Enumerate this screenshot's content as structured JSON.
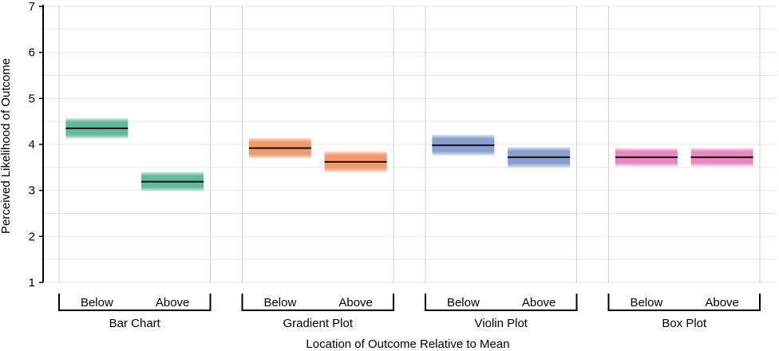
{
  "chart_data": {
    "type": "bar",
    "title": "",
    "xlabel": "Location of Outcome Relative to Mean",
    "ylabel": "Perceived Likelihood of Outcome",
    "ylim": [
      1,
      7
    ],
    "yticks": [
      "1",
      "2",
      "3",
      "4",
      "5",
      "6",
      "7"
    ],
    "grid": true,
    "groups": [
      {
        "name": "Bar Chart",
        "color": "#4fb38f",
        "categories": [
          {
            "label": "Below",
            "mean": 4.35,
            "ci_low": 4.13,
            "ci_high": 4.57
          },
          {
            "label": "Above",
            "mean": 3.19,
            "ci_low": 2.99,
            "ci_high": 3.4
          }
        ]
      },
      {
        "name": "Gradient Plot",
        "color": "#f28e5c",
        "categories": [
          {
            "label": "Below",
            "mean": 3.92,
            "ci_low": 3.7,
            "ci_high": 4.14
          },
          {
            "label": "Above",
            "mean": 3.62,
            "ci_low": 3.4,
            "ci_high": 3.85
          }
        ]
      },
      {
        "name": "Violin Plot",
        "color": "#7b93c7",
        "categories": [
          {
            "label": "Below",
            "mean": 3.98,
            "ci_low": 3.76,
            "ci_high": 4.21
          },
          {
            "label": "Above",
            "mean": 3.72,
            "ci_low": 3.5,
            "ci_high": 3.94
          }
        ]
      },
      {
        "name": "Box Plot",
        "color": "#e37ab9",
        "categories": [
          {
            "label": "Below",
            "mean": 3.72,
            "ci_low": 3.52,
            "ci_high": 3.92
          },
          {
            "label": "Above",
            "mean": 3.72,
            "ci_low": 3.52,
            "ci_high": 3.92
          }
        ]
      }
    ]
  }
}
